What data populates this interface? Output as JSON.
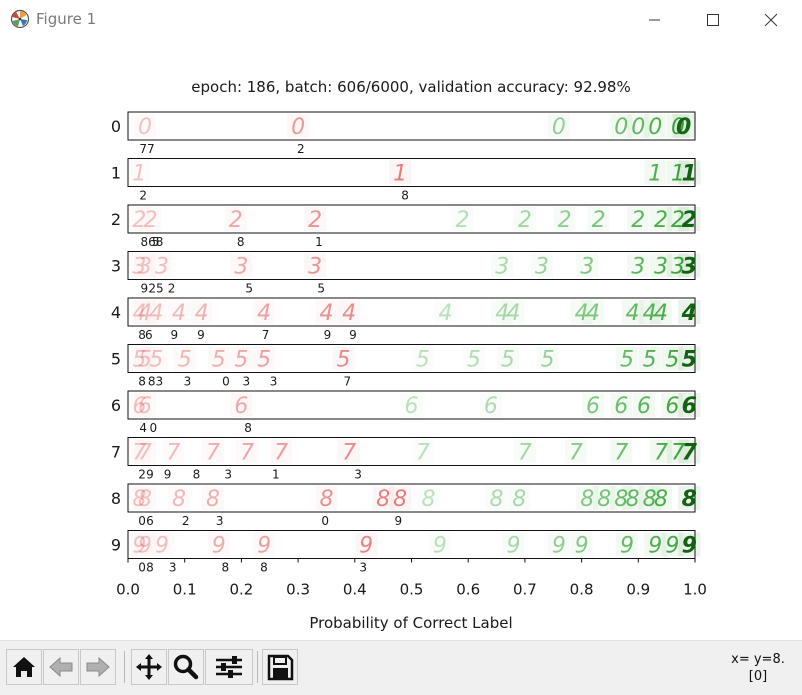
{
  "window": {
    "title": "Figure 1",
    "controls": [
      "minimize",
      "maximize",
      "close"
    ]
  },
  "toolbar": {
    "buttons": [
      {
        "name": "home-icon",
        "tip": "Reset original view"
      },
      {
        "name": "back-icon",
        "tip": "Back to previous view"
      },
      {
        "name": "forward-icon",
        "tip": "Forward to next view"
      },
      {
        "name": "pan-icon",
        "tip": "Pan axes"
      },
      {
        "name": "zoom-icon",
        "tip": "Zoom to rectangle"
      },
      {
        "name": "subplots-icon",
        "tip": "Configure subplots"
      },
      {
        "name": "save-icon",
        "tip": "Save the figure"
      }
    ],
    "coords_line1": "x= y=8.",
    "coords_line2": "[0]"
  },
  "chart_data": {
    "type": "scatter",
    "title": "epoch: 186, batch: 606/6000, validation accuracy: 92.98%",
    "xlabel": "Probability of Correct Label",
    "ylabel": "",
    "xlim": [
      0.0,
      1.0
    ],
    "xticks": [
      "0.0",
      "0.1",
      "0.2",
      "0.3",
      "0.4",
      "0.5",
      "0.6",
      "0.7",
      "0.8",
      "0.9",
      "1.0"
    ],
    "colors": {
      "incorrect": "#d62728",
      "correct": "#2ca02c",
      "strong_correct": "#0a5e0a"
    },
    "rows": [
      {
        "label": "0",
        "points": [
          0.03,
          0.3,
          0.76,
          0.87,
          0.9,
          0.93,
          0.97,
          0.98
        ],
        "annotations": [
          {
            "x": 0.02,
            "text": "77"
          },
          {
            "x": 0.298,
            "text": "2"
          }
        ]
      },
      {
        "label": "1",
        "points": [
          0.02,
          0.48,
          0.93,
          0.97,
          0.99
        ],
        "annotations": [
          {
            "x": 0.02,
            "text": "2"
          },
          {
            "x": 0.482,
            "text": "8"
          }
        ]
      },
      {
        "label": "2",
        "points": [
          0.02,
          0.04,
          0.19,
          0.33,
          0.59,
          0.7,
          0.77,
          0.83,
          0.9,
          0.94,
          0.97,
          0.99
        ],
        "annotations": [
          {
            "x": 0.022,
            "text": "868"
          },
          {
            "x": 0.042,
            "text": "5"
          },
          {
            "x": 0.192,
            "text": "8"
          },
          {
            "x": 0.33,
            "text": "1"
          }
        ]
      },
      {
        "label": "3",
        "points": [
          0.02,
          0.03,
          0.06,
          0.2,
          0.33,
          0.66,
          0.73,
          0.81,
          0.9,
          0.94,
          0.97,
          0.99
        ],
        "annotations": [
          {
            "x": 0.022,
            "text": "9"
          },
          {
            "x": 0.036,
            "text": "25"
          },
          {
            "x": 0.07,
            "text": "2"
          },
          {
            "x": 0.207,
            "text": "5"
          },
          {
            "x": 0.334,
            "text": "5"
          }
        ]
      },
      {
        "label": "4",
        "points": [
          0.02,
          0.03,
          0.05,
          0.09,
          0.13,
          0.24,
          0.35,
          0.39,
          0.56,
          0.66,
          0.68,
          0.8,
          0.82,
          0.89,
          0.92,
          0.94,
          0.99
        ],
        "annotations": [
          {
            "x": 0.018,
            "text": "8"
          },
          {
            "x": 0.03,
            "text": "6"
          },
          {
            "x": 0.075,
            "text": "9"
          },
          {
            "x": 0.122,
            "text": "9"
          },
          {
            "x": 0.236,
            "text": "7"
          },
          {
            "x": 0.345,
            "text": "9"
          },
          {
            "x": 0.39,
            "text": "9"
          }
        ]
      },
      {
        "label": "5",
        "points": [
          0.02,
          0.03,
          0.05,
          0.1,
          0.16,
          0.2,
          0.24,
          0.38,
          0.52,
          0.61,
          0.67,
          0.74,
          0.88,
          0.92,
          0.96,
          0.99
        ],
        "annotations": [
          {
            "x": 0.018,
            "text": "8"
          },
          {
            "x": 0.035,
            "text": "83"
          },
          {
            "x": 0.098,
            "text": "3"
          },
          {
            "x": 0.166,
            "text": "0"
          },
          {
            "x": 0.202,
            "text": "3"
          },
          {
            "x": 0.25,
            "text": "3"
          },
          {
            "x": 0.38,
            "text": "7"
          }
        ]
      },
      {
        "label": "6",
        "points": [
          0.02,
          0.03,
          0.2,
          0.5,
          0.64,
          0.82,
          0.87,
          0.91,
          0.96,
          0.99
        ],
        "annotations": [
          {
            "x": 0.02,
            "text": "4"
          },
          {
            "x": 0.038,
            "text": "0"
          },
          {
            "x": 0.205,
            "text": "8"
          }
        ]
      },
      {
        "label": "7",
        "points": [
          0.02,
          0.03,
          0.08,
          0.15,
          0.21,
          0.27,
          0.39,
          0.52,
          0.7,
          0.79,
          0.87,
          0.94,
          0.97,
          0.99
        ],
        "annotations": [
          {
            "x": 0.018,
            "text": "2"
          },
          {
            "x": 0.032,
            "text": "9"
          },
          {
            "x": 0.063,
            "text": "9"
          },
          {
            "x": 0.114,
            "text": "8"
          },
          {
            "x": 0.17,
            "text": "3"
          },
          {
            "x": 0.254,
            "text": "1"
          },
          {
            "x": 0.399,
            "text": "3"
          }
        ]
      },
      {
        "label": "8",
        "points": [
          0.02,
          0.03,
          0.09,
          0.15,
          0.35,
          0.45,
          0.48,
          0.53,
          0.65,
          0.69,
          0.81,
          0.84,
          0.87,
          0.89,
          0.92,
          0.94,
          0.99
        ],
        "annotations": [
          {
            "x": 0.018,
            "text": "0"
          },
          {
            "x": 0.032,
            "text": "6"
          },
          {
            "x": 0.095,
            "text": "2"
          },
          {
            "x": 0.155,
            "text": "3"
          },
          {
            "x": 0.341,
            "text": "0"
          },
          {
            "x": 0.47,
            "text": "9"
          }
        ]
      },
      {
        "label": "9",
        "points": [
          0.02,
          0.03,
          0.06,
          0.16,
          0.24,
          0.42,
          0.55,
          0.68,
          0.76,
          0.8,
          0.88,
          0.93,
          0.96,
          0.99
        ],
        "annotations": [
          {
            "x": 0.018,
            "text": "0"
          },
          {
            "x": 0.032,
            "text": "8"
          },
          {
            "x": 0.072,
            "text": "3"
          },
          {
            "x": 0.165,
            "text": "8"
          },
          {
            "x": 0.233,
            "text": "8"
          },
          {
            "x": 0.408,
            "text": "3"
          }
        ]
      }
    ]
  }
}
